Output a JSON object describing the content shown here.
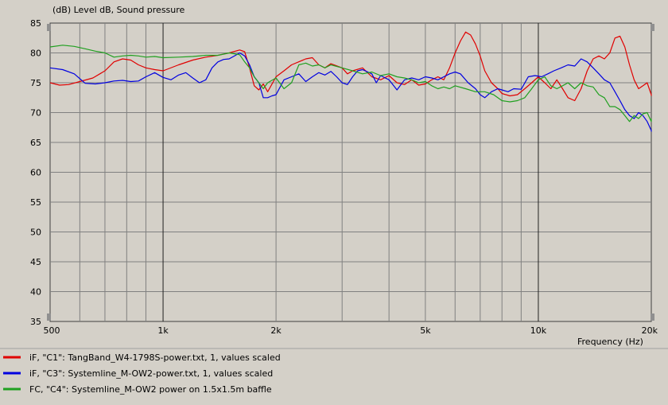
{
  "chart_data": {
    "type": "line",
    "title": "(dB)  Level dB, Sound pressure",
    "xlabel": "Frequency  (Hz)",
    "ylabel": "(dB)",
    "xscale": "log",
    "xlim": [
      500,
      20000
    ],
    "ylim": [
      35,
      85
    ],
    "grid": true,
    "legend_position": "bottom",
    "x_ticks": [
      {
        "value": 500,
        "label": "500"
      },
      {
        "value": 1000,
        "label": "1k"
      },
      {
        "value": 2000,
        "label": "2k"
      },
      {
        "value": 5000,
        "label": "5k"
      },
      {
        "value": 10000,
        "label": "10k"
      },
      {
        "value": 20000,
        "label": "20k"
      }
    ],
    "y_ticks": [
      35,
      40,
      45,
      50,
      55,
      60,
      65,
      70,
      75,
      80,
      85
    ],
    "series": [
      {
        "name": "iF, \"C1\": TangBand_W4-1798S-power.txt, 1, values scaled",
        "color": "#e00000",
        "points": [
          [
            500,
            75.0
          ],
          [
            530,
            74.6
          ],
          [
            560,
            74.7
          ],
          [
            600,
            75.2
          ],
          [
            650,
            75.8
          ],
          [
            700,
            77.0
          ],
          [
            740,
            78.5
          ],
          [
            780,
            79.0
          ],
          [
            820,
            78.8
          ],
          [
            860,
            78.0
          ],
          [
            900,
            77.5
          ],
          [
            950,
            77.2
          ],
          [
            1000,
            77.0
          ],
          [
            1100,
            78.0
          ],
          [
            1200,
            78.8
          ],
          [
            1300,
            79.3
          ],
          [
            1400,
            79.6
          ],
          [
            1500,
            80.0
          ],
          [
            1600,
            80.5
          ],
          [
            1650,
            80.2
          ],
          [
            1700,
            77.5
          ],
          [
            1750,
            74.5
          ],
          [
            1800,
            73.8
          ],
          [
            1850,
            74.8
          ],
          [
            1900,
            73.5
          ],
          [
            2000,
            76.0
          ],
          [
            2100,
            77.0
          ],
          [
            2200,
            78.0
          ],
          [
            2400,
            79.0
          ],
          [
            2500,
            79.2
          ],
          [
            2600,
            78.0
          ],
          [
            2700,
            77.5
          ],
          [
            2800,
            78.2
          ],
          [
            3000,
            77.5
          ],
          [
            3100,
            76.5
          ],
          [
            3200,
            77.0
          ],
          [
            3400,
            77.5
          ],
          [
            3600,
            76.0
          ],
          [
            3800,
            75.5
          ],
          [
            4000,
            76.2
          ],
          [
            4200,
            75.0
          ],
          [
            4400,
            74.7
          ],
          [
            4600,
            75.5
          ],
          [
            4800,
            74.6
          ],
          [
            5000,
            74.8
          ],
          [
            5200,
            75.5
          ],
          [
            5400,
            76.0
          ],
          [
            5600,
            75.5
          ],
          [
            5800,
            77.5
          ],
          [
            6000,
            80.0
          ],
          [
            6200,
            82.0
          ],
          [
            6400,
            83.5
          ],
          [
            6600,
            83.0
          ],
          [
            6800,
            81.5
          ],
          [
            7000,
            79.5
          ],
          [
            7200,
            77.0
          ],
          [
            7500,
            75.0
          ],
          [
            7800,
            74.0
          ],
          [
            8000,
            73.2
          ],
          [
            8400,
            72.8
          ],
          [
            8800,
            73.0
          ],
          [
            9200,
            74.0
          ],
          [
            9600,
            75.0
          ],
          [
            10000,
            76.0
          ],
          [
            10400,
            75.0
          ],
          [
            10800,
            74.0
          ],
          [
            11200,
            75.5
          ],
          [
            11600,
            74.0
          ],
          [
            12000,
            72.5
          ],
          [
            12500,
            72.0
          ],
          [
            13000,
            74.0
          ],
          [
            13500,
            77.0
          ],
          [
            14000,
            79.0
          ],
          [
            14500,
            79.5
          ],
          [
            15000,
            79.0
          ],
          [
            15500,
            80.0
          ],
          [
            16000,
            82.5
          ],
          [
            16500,
            82.8
          ],
          [
            17000,
            81.0
          ],
          [
            17500,
            78.0
          ],
          [
            18000,
            75.5
          ],
          [
            18500,
            74.0
          ],
          [
            19000,
            74.5
          ],
          [
            19500,
            75.0
          ],
          [
            20000,
            73.0
          ],
          [
            20500,
            72.8
          ]
        ]
      },
      {
        "name": "iF, \"C3\": Systemline_M-OW2-power.txt, 1, values scaled",
        "color": "#0000e0",
        "points": [
          [
            500,
            77.5
          ],
          [
            540,
            77.2
          ],
          [
            580,
            76.5
          ],
          [
            620,
            74.9
          ],
          [
            660,
            74.8
          ],
          [
            700,
            75.0
          ],
          [
            740,
            75.3
          ],
          [
            780,
            75.4
          ],
          [
            820,
            75.2
          ],
          [
            860,
            75.3
          ],
          [
            900,
            76.0
          ],
          [
            950,
            76.7
          ],
          [
            1000,
            75.9
          ],
          [
            1050,
            75.5
          ],
          [
            1100,
            76.3
          ],
          [
            1150,
            76.7
          ],
          [
            1200,
            75.8
          ],
          [
            1250,
            75.0
          ],
          [
            1300,
            75.5
          ],
          [
            1350,
            77.5
          ],
          [
            1400,
            78.5
          ],
          [
            1450,
            78.9
          ],
          [
            1500,
            79.0
          ],
          [
            1560,
            79.6
          ],
          [
            1600,
            80.0
          ],
          [
            1650,
            79.5
          ],
          [
            1700,
            78.0
          ],
          [
            1750,
            76.0
          ],
          [
            1800,
            75.0
          ],
          [
            1850,
            72.5
          ],
          [
            1900,
            72.5
          ],
          [
            1950,
            72.8
          ],
          [
            2000,
            73.0
          ],
          [
            2100,
            75.5
          ],
          [
            2200,
            76.0
          ],
          [
            2300,
            76.5
          ],
          [
            2400,
            75.2
          ],
          [
            2500,
            76.0
          ],
          [
            2600,
            76.7
          ],
          [
            2700,
            76.3
          ],
          [
            2800,
            76.9
          ],
          [
            2900,
            76.0
          ],
          [
            3000,
            75.0
          ],
          [
            3100,
            74.7
          ],
          [
            3200,
            76.0
          ],
          [
            3300,
            77.0
          ],
          [
            3400,
            77.2
          ],
          [
            3600,
            76.5
          ],
          [
            3700,
            75.0
          ],
          [
            3800,
            76.2
          ],
          [
            4000,
            75.5
          ],
          [
            4200,
            73.8
          ],
          [
            4400,
            75.5
          ],
          [
            4600,
            75.8
          ],
          [
            4800,
            75.5
          ],
          [
            5000,
            76.0
          ],
          [
            5200,
            75.8
          ],
          [
            5400,
            75.5
          ],
          [
            5600,
            76.0
          ],
          [
            5800,
            76.5
          ],
          [
            6000,
            76.8
          ],
          [
            6200,
            76.5
          ],
          [
            6500,
            75.0
          ],
          [
            6800,
            74.0
          ],
          [
            7000,
            73.0
          ],
          [
            7200,
            72.5
          ],
          [
            7500,
            73.5
          ],
          [
            7800,
            74.0
          ],
          [
            8000,
            73.8
          ],
          [
            8300,
            73.5
          ],
          [
            8600,
            74.0
          ],
          [
            9000,
            73.9
          ],
          [
            9400,
            76.0
          ],
          [
            9800,
            76.2
          ],
          [
            10200,
            76.0
          ],
          [
            10600,
            76.5
          ],
          [
            11000,
            77.0
          ],
          [
            11500,
            77.5
          ],
          [
            12000,
            78.0
          ],
          [
            12500,
            77.8
          ],
          [
            13000,
            79.0
          ],
          [
            13500,
            78.5
          ],
          [
            14000,
            77.5
          ],
          [
            14500,
            76.5
          ],
          [
            15000,
            75.5
          ],
          [
            15500,
            75.0
          ],
          [
            16000,
            73.5
          ],
          [
            16500,
            72.0
          ],
          [
            17000,
            70.5
          ],
          [
            17500,
            69.5
          ],
          [
            18000,
            69.0
          ],
          [
            18500,
            70.0
          ],
          [
            19000,
            69.5
          ],
          [
            19500,
            68.5
          ],
          [
            20000,
            67.0
          ],
          [
            20500,
            66.8
          ]
        ]
      },
      {
        "name": "FC, \"C4\": Systemline_M-OW2 power on 1.5x1.5m baffle",
        "color": "#20a020",
        "points": [
          [
            500,
            81.0
          ],
          [
            540,
            81.3
          ],
          [
            580,
            81.1
          ],
          [
            620,
            80.7
          ],
          [
            660,
            80.3
          ],
          [
            700,
            80.0
          ],
          [
            740,
            79.3
          ],
          [
            780,
            79.5
          ],
          [
            820,
            79.6
          ],
          [
            860,
            79.5
          ],
          [
            900,
            79.3
          ],
          [
            950,
            79.4
          ],
          [
            1000,
            79.2
          ],
          [
            1100,
            79.3
          ],
          [
            1200,
            79.4
          ],
          [
            1300,
            79.6
          ],
          [
            1400,
            79.6
          ],
          [
            1500,
            80.0
          ],
          [
            1600,
            79.7
          ],
          [
            1650,
            78.5
          ],
          [
            1700,
            77.5
          ],
          [
            1750,
            76.0
          ],
          [
            1800,
            75.0
          ],
          [
            1850,
            74.0
          ],
          [
            1900,
            75.0
          ],
          [
            2000,
            75.8
          ],
          [
            2100,
            74.0
          ],
          [
            2200,
            75.0
          ],
          [
            2300,
            78.0
          ],
          [
            2400,
            78.3
          ],
          [
            2500,
            77.8
          ],
          [
            2600,
            78.0
          ],
          [
            2700,
            77.5
          ],
          [
            2800,
            78.0
          ],
          [
            3000,
            77.5
          ],
          [
            3200,
            77.0
          ],
          [
            3400,
            76.5
          ],
          [
            3600,
            76.8
          ],
          [
            3800,
            76.2
          ],
          [
            4000,
            76.5
          ],
          [
            4200,
            76.0
          ],
          [
            4400,
            75.8
          ],
          [
            4600,
            75.5
          ],
          [
            4800,
            75.0
          ],
          [
            5000,
            75.2
          ],
          [
            5200,
            74.5
          ],
          [
            5400,
            74.0
          ],
          [
            5600,
            74.3
          ],
          [
            5800,
            74.0
          ],
          [
            6000,
            74.5
          ],
          [
            6400,
            74.0
          ],
          [
            6800,
            73.5
          ],
          [
            7200,
            73.5
          ],
          [
            7600,
            73.0
          ],
          [
            8000,
            72.0
          ],
          [
            8400,
            71.8
          ],
          [
            8800,
            72.0
          ],
          [
            9200,
            72.5
          ],
          [
            9600,
            74.0
          ],
          [
            10000,
            75.5
          ],
          [
            10400,
            76.0
          ],
          [
            10800,
            74.5
          ],
          [
            11200,
            74.0
          ],
          [
            11600,
            74.5
          ],
          [
            12000,
            75.0
          ],
          [
            12500,
            74.0
          ],
          [
            13000,
            75.0
          ],
          [
            13500,
            74.5
          ],
          [
            14000,
            74.3
          ],
          [
            14500,
            73.0
          ],
          [
            15000,
            72.5
          ],
          [
            15500,
            71.0
          ],
          [
            16000,
            71.0
          ],
          [
            16500,
            70.5
          ],
          [
            17000,
            69.5
          ],
          [
            17500,
            68.5
          ],
          [
            18000,
            69.5
          ],
          [
            18500,
            69.0
          ],
          [
            19000,
            69.8
          ],
          [
            19500,
            70.0
          ],
          [
            20000,
            68.5
          ],
          [
            20500,
            69.0
          ]
        ]
      }
    ]
  }
}
